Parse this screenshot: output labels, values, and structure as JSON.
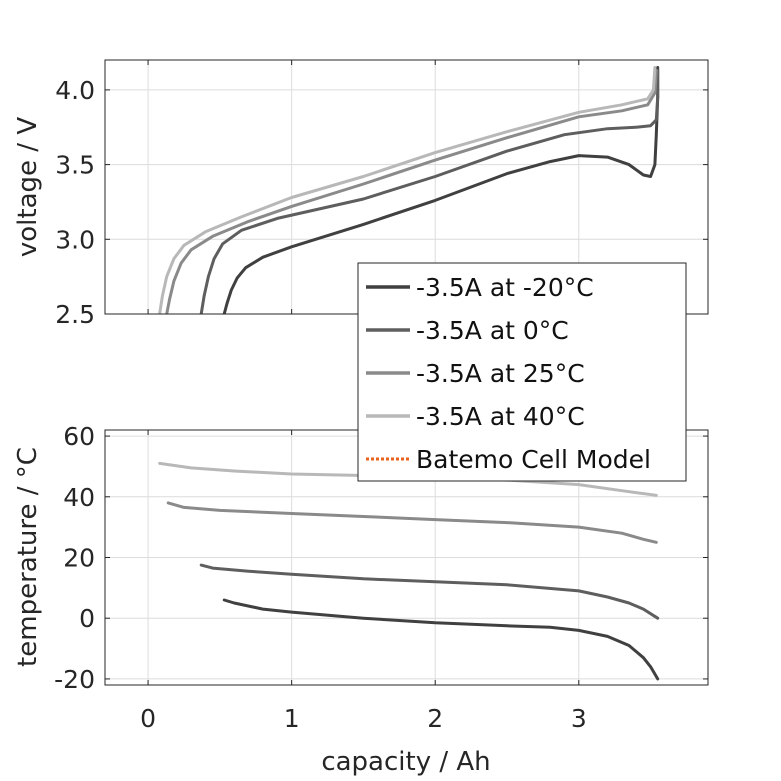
{
  "chart_data": [
    {
      "type": "line",
      "panel": "voltage",
      "xlabel": "capacity / Ah",
      "ylabel": "voltage / V",
      "xlim": [
        -0.3,
        3.9
      ],
      "ylim": [
        2.5,
        4.2
      ],
      "xticks": [
        "0",
        "1",
        "2",
        "3"
      ],
      "xtick_values": [
        0,
        1,
        2,
        3
      ],
      "yticks": [
        "2.5",
        "3.0",
        "3.5",
        "4.0"
      ],
      "ytick_values": [
        2.5,
        3.0,
        3.5,
        4.0
      ],
      "grid": true,
      "series": [
        {
          "name": "-3.5A at -20°C",
          "color": "#404040",
          "x": [
            0.53,
            0.55,
            0.58,
            0.62,
            0.68,
            0.8,
            1.0,
            1.5,
            2.0,
            2.5,
            2.8,
            3.0,
            3.2,
            3.35,
            3.45,
            3.5,
            3.53,
            3.54,
            3.55,
            3.55
          ],
          "y": [
            2.5,
            2.57,
            2.66,
            2.74,
            2.81,
            2.88,
            2.95,
            3.1,
            3.26,
            3.44,
            3.52,
            3.56,
            3.55,
            3.5,
            3.43,
            3.42,
            3.5,
            3.7,
            3.95,
            4.15
          ]
        },
        {
          "name": "-3.5A at 0°C",
          "color": "#5e5e5e",
          "x": [
            0.37,
            0.39,
            0.42,
            0.46,
            0.52,
            0.65,
            0.9,
            1.5,
            2.0,
            2.5,
            2.9,
            3.2,
            3.4,
            3.5,
            3.54,
            3.55,
            3.55
          ],
          "y": [
            2.5,
            2.62,
            2.75,
            2.87,
            2.97,
            3.06,
            3.14,
            3.27,
            3.42,
            3.59,
            3.7,
            3.74,
            3.75,
            3.76,
            3.8,
            3.95,
            4.13
          ]
        },
        {
          "name": "-3.5A at 25°C",
          "color": "#8a8a8a",
          "x": [
            0.13,
            0.15,
            0.18,
            0.23,
            0.3,
            0.45,
            0.7,
            1.0,
            1.5,
            2.0,
            2.5,
            3.0,
            3.3,
            3.48,
            3.53,
            3.54
          ],
          "y": [
            2.5,
            2.6,
            2.72,
            2.84,
            2.93,
            3.02,
            3.12,
            3.22,
            3.37,
            3.53,
            3.68,
            3.82,
            3.86,
            3.9,
            3.98,
            4.13
          ]
        },
        {
          "name": "-3.5A at 40°C",
          "color": "#b8b8b8",
          "x": [
            0.08,
            0.1,
            0.13,
            0.18,
            0.25,
            0.4,
            0.65,
            1.0,
            1.5,
            2.0,
            2.5,
            3.0,
            3.3,
            3.48,
            3.52,
            3.53
          ],
          "y": [
            2.5,
            2.62,
            2.75,
            2.87,
            2.96,
            3.05,
            3.15,
            3.28,
            3.42,
            3.58,
            3.72,
            3.85,
            3.9,
            3.94,
            4.0,
            4.15
          ]
        }
      ]
    },
    {
      "type": "line",
      "panel": "temperature",
      "xlabel": "capacity / Ah",
      "ylabel": "temperature / °C",
      "xlim": [
        -0.3,
        3.9
      ],
      "ylim": [
        -22,
        62
      ],
      "xticks": [
        "0",
        "1",
        "2",
        "3"
      ],
      "xtick_values": [
        0,
        1,
        2,
        3
      ],
      "yticks": [
        "-20",
        "0",
        "20",
        "40",
        "60"
      ],
      "ytick_values": [
        -20,
        0,
        20,
        40,
        60
      ],
      "grid": true,
      "series": [
        {
          "name": "-3.5A at -20°C",
          "color": "#404040",
          "x": [
            0.53,
            0.6,
            0.8,
            1.0,
            1.5,
            2.0,
            2.5,
            2.8,
            3.0,
            3.2,
            3.35,
            3.45,
            3.5,
            3.55
          ],
          "y": [
            6,
            5,
            3,
            2,
            0,
            -1.5,
            -2.5,
            -3,
            -4,
            -6,
            -9,
            -13,
            -16,
            -20
          ]
        },
        {
          "name": "-3.5A at 0°C",
          "color": "#5e5e5e",
          "x": [
            0.37,
            0.45,
            0.7,
            1.0,
            1.5,
            2.0,
            2.5,
            3.0,
            3.2,
            3.35,
            3.45,
            3.55
          ],
          "y": [
            17.5,
            16.5,
            15.5,
            14.5,
            13,
            12,
            11,
            9,
            7,
            5,
            3,
            0
          ]
        },
        {
          "name": "-3.5A at 25°C",
          "color": "#8a8a8a",
          "x": [
            0.14,
            0.25,
            0.5,
            1.0,
            1.5,
            2.0,
            2.5,
            3.0,
            3.3,
            3.45,
            3.54
          ],
          "y": [
            38,
            36.5,
            35.5,
            34.5,
            33.5,
            32.5,
            31.5,
            30,
            28,
            26,
            25
          ]
        },
        {
          "name": "-3.5A at 40°C",
          "color": "#b8b8b8",
          "x": [
            0.08,
            0.3,
            0.6,
            1.0,
            1.5,
            2.0,
            2.5,
            3.0,
            3.3,
            3.54
          ],
          "y": [
            51,
            49.5,
            48.5,
            47.5,
            47,
            46,
            45.5,
            44,
            42,
            40.5
          ]
        }
      ]
    }
  ],
  "legend": {
    "placement": "center-right",
    "entries": [
      {
        "label": "-3.5A at -20°C",
        "color": "#404040",
        "style": "solid"
      },
      {
        "label": "-3.5A at 0°C",
        "color": "#5e5e5e",
        "style": "solid"
      },
      {
        "label": "-3.5A at 25°C",
        "color": "#8a8a8a",
        "style": "solid"
      },
      {
        "label": "-3.5A at 40°C",
        "color": "#b8b8b8",
        "style": "solid"
      },
      {
        "label": "Batemo Cell Model",
        "color": "#e8621e",
        "style": "dotted"
      }
    ]
  }
}
